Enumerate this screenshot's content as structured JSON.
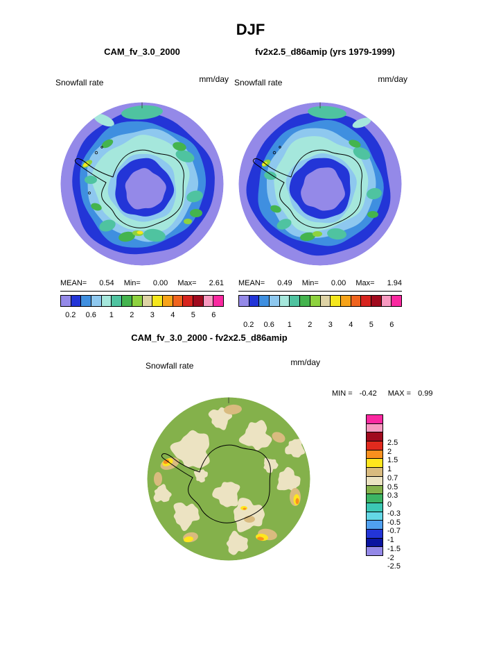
{
  "title": "DJF",
  "panels": {
    "left": {
      "header": "CAM_fv_3.0_2000",
      "field": "Snowfall rate",
      "units": "mm/day",
      "stats": {
        "mean_label": "MEAN=",
        "mean_value": "0.54",
        "min_label": "Min=",
        "min_value": "0.00",
        "max_label": "Max=",
        "max_value": "2.61"
      }
    },
    "right": {
      "header": "fv2x2.5_d86amip (yrs 1979-1999)",
      "field": "Snowfall rate",
      "units": "mm/day",
      "stats": {
        "mean_label": "MEAN=",
        "mean_value": "0.49",
        "min_label": "Min=",
        "min_value": "0.00",
        "max_label": "Max=",
        "max_value": "1.94"
      }
    }
  },
  "colorbar": {
    "tick_labels": [
      "0.2",
      "0.6",
      "1",
      "2",
      "3",
      "4",
      "5",
      "6"
    ]
  },
  "diff_panel": {
    "header": "CAM_fv_3.0_2000 - fv2x2.5_d86amip",
    "field": "Snowfall rate",
    "units": "mm/day",
    "min_label": "MIN =",
    "min_value": "-0.42",
    "max_label": "MAX =",
    "max_value": "0.99",
    "colorbar_labels": [
      "2.5",
      "2",
      "1.5",
      "1",
      "0.7",
      "0.5",
      "0.3",
      "0",
      "-0.3",
      "-0.5",
      "-0.7",
      "-1",
      "-1.5",
      "-2",
      "-2.5"
    ]
  },
  "palette": {
    "snowfall_colors": [
      "#9489e8",
      "#2335d7",
      "#3f8fe0",
      "#8ec8ef",
      "#a5e7dc",
      "#4fc3a0",
      "#44b44e",
      "#8ed23f",
      "#ded3a5",
      "#f5e71d",
      "#f7a319",
      "#f0641e",
      "#d7241f",
      "#a00a1e",
      "#f799c0",
      "#fa28a0"
    ],
    "diff_colors": [
      "#fa28a0",
      "#f799c0",
      "#a00a1e",
      "#e02a1e",
      "#f9901e",
      "#ffe61e",
      "#d9bb7f",
      "#ece3c2",
      "#84b14b",
      "#3cb464",
      "#3cc8b4",
      "#64d7e6",
      "#50a0f0",
      "#2335d7",
      "#0a14a0",
      "#9489e8"
    ]
  },
  "chart_data": [
    {
      "type": "heatmap",
      "panel": "left",
      "title": "CAM_fv_3.0_2000",
      "season": "DJF",
      "variable": "Snowfall rate",
      "units": "mm/day",
      "projection": "southern-polar-stereographic",
      "region": "Antarctica",
      "stats": {
        "mean": 0.54,
        "min": 0.0,
        "max": 2.61
      },
      "contour_levels": [
        0.2,
        0.4,
        0.6,
        0.8,
        1,
        1.5,
        2,
        2.5,
        3,
        3.5,
        4,
        4.5,
        5,
        5.5,
        6
      ],
      "labeled_levels": [
        0.2,
        0.6,
        1,
        2,
        3,
        4,
        5,
        6
      ],
      "palette": "snowfall_colors",
      "legend_position": "below"
    },
    {
      "type": "heatmap",
      "panel": "right",
      "title": "fv2x2.5_d86amip (yrs 1979-1999)",
      "season": "DJF",
      "variable": "Snowfall rate",
      "units": "mm/day",
      "projection": "southern-polar-stereographic",
      "region": "Antarctica",
      "stats": {
        "mean": 0.49,
        "min": 0.0,
        "max": 1.94
      },
      "contour_levels": [
        0.2,
        0.4,
        0.6,
        0.8,
        1,
        1.5,
        2,
        2.5,
        3,
        3.5,
        4,
        4.5,
        5,
        5.5,
        6
      ],
      "labeled_levels": [
        0.2,
        0.6,
        1,
        2,
        3,
        4,
        5,
        6
      ],
      "palette": "snowfall_colors",
      "legend_position": "below"
    },
    {
      "type": "heatmap",
      "panel": "difference",
      "title": "CAM_fv_3.0_2000 - fv2x2.5_d86amip",
      "season": "DJF",
      "variable": "Snowfall rate",
      "units": "mm/day",
      "projection": "southern-polar-stereographic",
      "region": "Antarctica",
      "stats": {
        "min": -0.42,
        "max": 0.99
      },
      "contour_levels": [
        -2.5,
        -2,
        -1.5,
        -1,
        -0.7,
        -0.5,
        -0.3,
        0,
        0.3,
        0.5,
        0.7,
        1,
        1.5,
        2,
        2.5
      ],
      "palette": "diff_colors",
      "legend_position": "right"
    }
  ]
}
